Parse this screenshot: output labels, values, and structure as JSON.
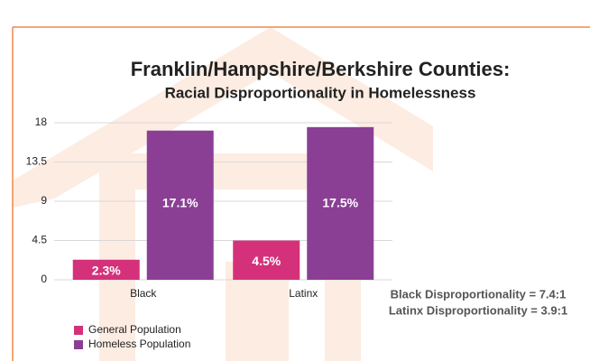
{
  "chart_data": {
    "type": "bar",
    "title": "Franklin/Hampshire/Berkshire Counties:",
    "subtitle": "Racial Disproportionality in Homelessness",
    "categories": [
      "Black",
      "Latinx"
    ],
    "series": [
      {
        "name": "General Population",
        "color": "#d4317a",
        "values": [
          2.3,
          4.5
        ],
        "value_labels": [
          "2.3%",
          "4.5%"
        ]
      },
      {
        "name": "Homeless Population",
        "color": "#8a3f95",
        "values": [
          17.1,
          17.5
        ],
        "value_labels": [
          "17.1%",
          "17.5%"
        ]
      }
    ],
    "ylim": [
      0,
      18
    ],
    "yticks": [
      0,
      4.5,
      9,
      13.5,
      18
    ],
    "grid": true,
    "legend": "bottom-left",
    "annotations": [
      "Black Disproportionality = 7.4:1",
      "Latinx Disproportionality = 3.9:1"
    ]
  }
}
